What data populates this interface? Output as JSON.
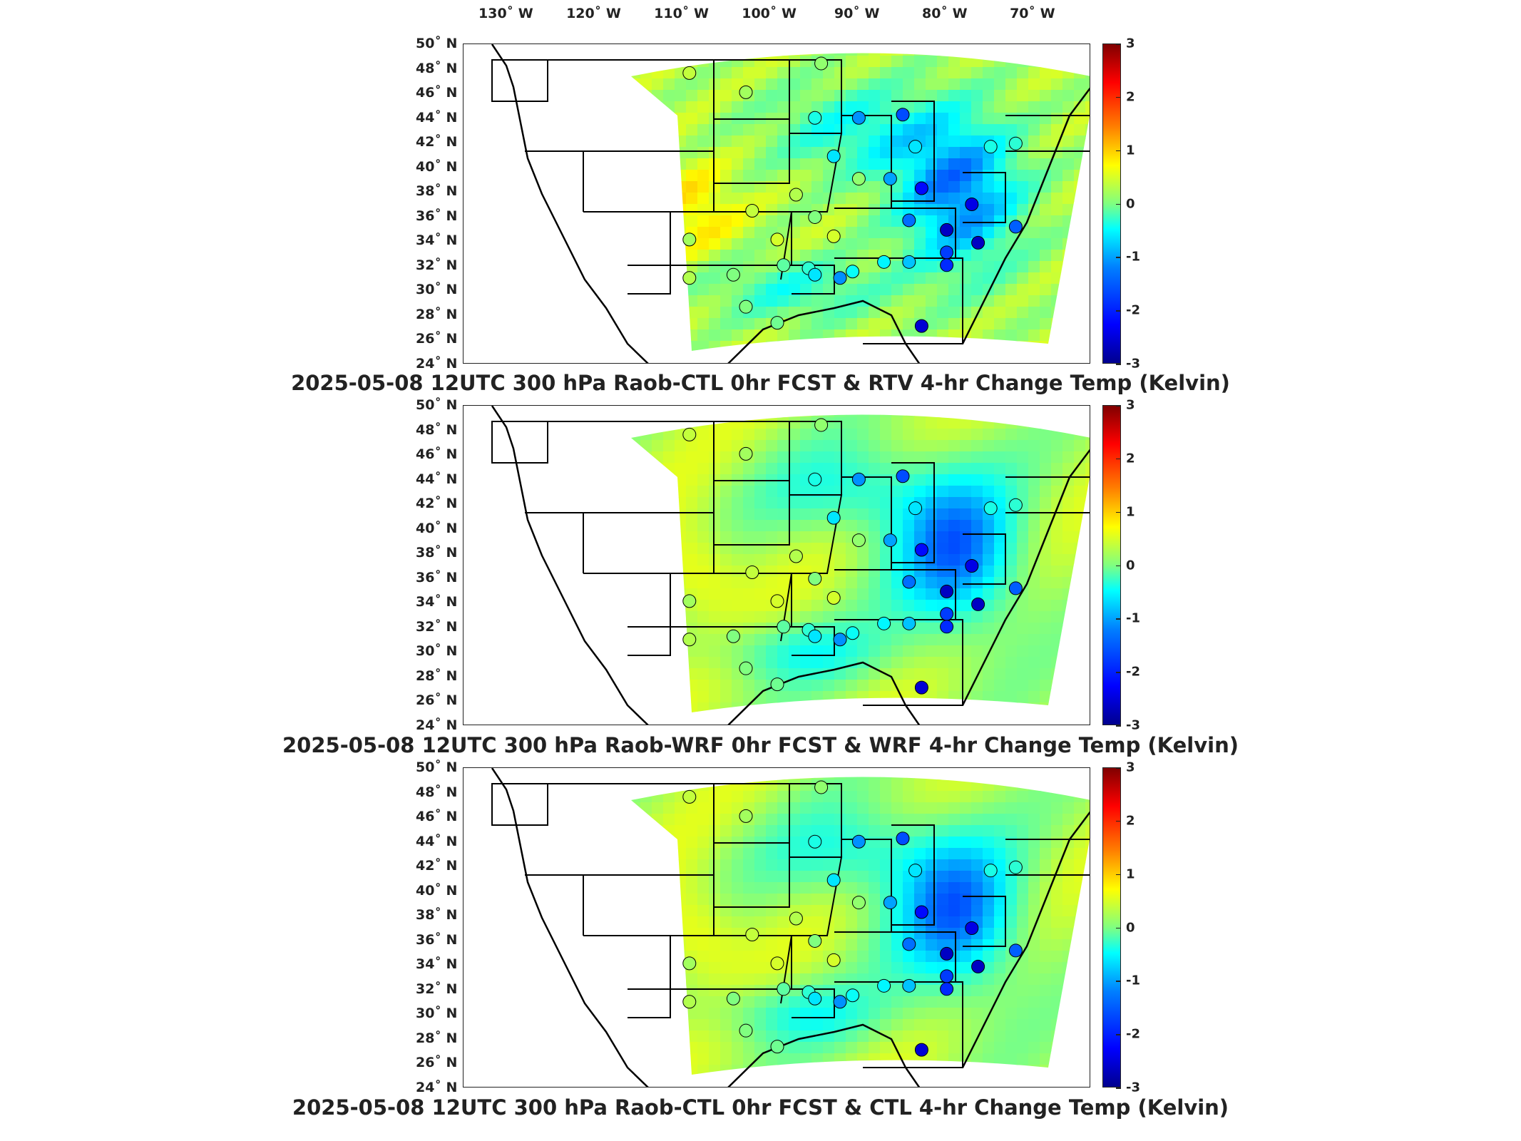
{
  "lon_labels": [
    {
      "label": "130˚ W",
      "lon": -130
    },
    {
      "label": "120˚ W",
      "lon": -120
    },
    {
      "label": "110˚ W",
      "lon": -110
    },
    {
      "label": "100˚ W",
      "lon": -100
    },
    {
      "label": "90˚ W",
      "lon": -90
    },
    {
      "label": "80˚ W",
      "lon": -80
    },
    {
      "label": "70˚ W",
      "lon": -70
    }
  ],
  "lat_labels": [
    {
      "label": "50˚ N",
      "lat": 50
    },
    {
      "label": "48˚ N",
      "lat": 48
    },
    {
      "label": "46˚ N",
      "lat": 46
    },
    {
      "label": "44˚ N",
      "lat": 44
    },
    {
      "label": "42˚ N",
      "lat": 42
    },
    {
      "label": "40˚ N",
      "lat": 40
    },
    {
      "label": "38˚ N",
      "lat": 38
    },
    {
      "label": "36˚ N",
      "lat": 36
    },
    {
      "label": "34˚ N",
      "lat": 34
    },
    {
      "label": "32˚ N",
      "lat": 32
    },
    {
      "label": "30˚ N",
      "lat": 30
    },
    {
      "label": "28˚ N",
      "lat": 28
    },
    {
      "label": "26˚ N",
      "lat": 26
    },
    {
      "label": "24˚ N",
      "lat": 24
    }
  ],
  "colorbar": {
    "ticks": [
      "3",
      "2",
      "1",
      "0",
      "-1",
      "-2",
      "-3"
    ],
    "range": [
      -3,
      3
    ],
    "colormap": "jet"
  },
  "panels": [
    {
      "title": "2025-05-08 12UTC 300 hPa Raob-CTL 0hr FCST & RTV 4-hr Change Temp (Kelvin)",
      "variant": 0
    },
    {
      "title": "2025-05-08 12UTC 300 hPa Raob-WRF 0hr FCST & WRF 4-hr Change Temp (Kelvin)",
      "variant": 1
    },
    {
      "title": "2025-05-08 12UTC 300 hPa Raob-CTL 0hr FCST & CTL 4-hr Change Temp (Kelvin)",
      "variant": 2
    }
  ],
  "colors": {
    "deep_blue": "#1020c0",
    "blue": "#2080ff",
    "cyan": "#20d0f0",
    "green": "#60e0a0",
    "yellow": "#f0f030",
    "orange": "#f08020",
    "red": "#e02010"
  }
}
